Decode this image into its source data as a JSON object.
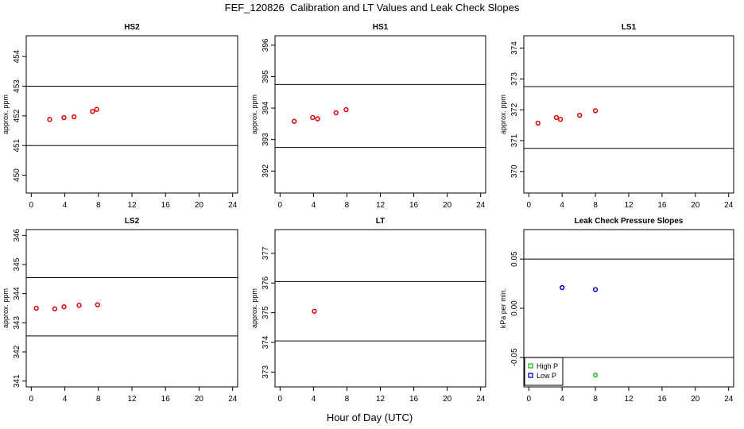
{
  "page": {
    "title": "FEF_120826  Calibration and LT Values and Leak Check Slopes",
    "x_axis_label": "Hour of Day (UTC)"
  },
  "colors": {
    "point": "#e00000",
    "high_p": "#22bb22",
    "low_p": "#0000cc",
    "line": "#000000"
  },
  "chart_data": [
    {
      "type": "scatter",
      "title": "HS2",
      "ylabel": "approx. ppm",
      "xlim": [
        -0.6,
        24.6
      ],
      "ylim": [
        449.4,
        454.7
      ],
      "x_ticks": [
        0,
        4,
        8,
        12,
        16,
        20,
        24
      ],
      "y_ticks": [
        450,
        451,
        452,
        453,
        454
      ],
      "hlines": [
        451.0,
        453.0
      ],
      "grid": false,
      "series": [
        {
          "marker": "circle",
          "x": [
            2.2,
            3.9,
            5.1,
            7.3,
            7.8
          ],
          "y": [
            451.88,
            451.94,
            451.97,
            452.15,
            452.22
          ]
        }
      ]
    },
    {
      "type": "scatter",
      "title": "HS1",
      "ylabel": "approx. ppm",
      "xlim": [
        -0.6,
        24.6
      ],
      "ylim": [
        391.3,
        396.3
      ],
      "x_ticks": [
        0,
        4,
        8,
        12,
        16,
        20,
        24
      ],
      "y_ticks": [
        392,
        393,
        394,
        395,
        396
      ],
      "hlines": [
        392.75,
        394.75
      ],
      "grid": false,
      "series": [
        {
          "marker": "circle",
          "x": [
            1.7,
            3.9,
            4.5,
            6.7,
            7.9
          ],
          "y": [
            393.58,
            393.7,
            393.66,
            393.85,
            393.95
          ]
        }
      ]
    },
    {
      "type": "scatter",
      "title": "LS1",
      "ylabel": "approx. ppm",
      "xlim": [
        -0.6,
        24.6
      ],
      "ylim": [
        369.3,
        374.4
      ],
      "x_ticks": [
        0,
        4,
        8,
        12,
        16,
        20,
        24
      ],
      "y_ticks": [
        370,
        371,
        372,
        373,
        374
      ],
      "hlines": [
        370.75,
        372.75
      ],
      "grid": false,
      "series": [
        {
          "marker": "circle",
          "x": [
            1.1,
            3.3,
            3.8,
            6.1,
            8.0
          ],
          "y": [
            371.57,
            371.75,
            371.69,
            371.82,
            371.97
          ]
        }
      ]
    },
    {
      "type": "scatter",
      "title": "LS2",
      "ylabel": "approx. ppm",
      "xlim": [
        -0.6,
        24.6
      ],
      "ylim": [
        340.8,
        346.2
      ],
      "x_ticks": [
        0,
        4,
        8,
        12,
        16,
        20,
        24
      ],
      "y_ticks": [
        341,
        342,
        343,
        344,
        345,
        346
      ],
      "hlines": [
        342.55,
        344.55
      ],
      "grid": false,
      "series": [
        {
          "marker": "circle",
          "x": [
            0.6,
            2.8,
            3.9,
            5.7,
            7.9
          ],
          "y": [
            343.5,
            343.48,
            343.55,
            343.6,
            343.62
          ]
        }
      ]
    },
    {
      "type": "scatter",
      "title": "LT",
      "ylabel": "approx. ppm",
      "xlim": [
        -0.6,
        24.6
      ],
      "ylim": [
        372.5,
        377.8
      ],
      "x_ticks": [
        0,
        4,
        8,
        12,
        16,
        20,
        24
      ],
      "y_ticks": [
        373,
        374,
        375,
        376,
        377
      ],
      "hlines": [
        374.05,
        376.05
      ],
      "grid": false,
      "series": [
        {
          "marker": "circle",
          "x": [
            4.1
          ],
          "y": [
            375.05
          ]
        }
      ]
    },
    {
      "type": "scatter",
      "title": "Leak Check Pressure Slopes",
      "ylabel": "kPa per min.",
      "xlim": [
        -0.6,
        24.6
      ],
      "ylim": [
        -0.08,
        0.08
      ],
      "x_ticks": [
        0,
        4,
        8,
        12,
        16,
        20,
        24
      ],
      "y_ticks": [
        -0.05,
        0.0,
        0.05
      ],
      "y_tick_labels": [
        "-0.05",
        "0.00",
        "0.05"
      ],
      "hlines": [
        -0.05,
        0.05
      ],
      "grid": false,
      "legend": {
        "position": "bottom-left",
        "entries": [
          "High P",
          "Low P"
        ]
      },
      "series": [
        {
          "name": "High P",
          "marker": "circle",
          "color_key": "high_p",
          "x": [
            8.0
          ],
          "y": [
            -0.068
          ]
        },
        {
          "name": "Low P",
          "marker": "circle",
          "color_key": "low_p",
          "x": [
            4.0,
            8.0
          ],
          "y": [
            0.021,
            0.019
          ]
        }
      ]
    }
  ]
}
